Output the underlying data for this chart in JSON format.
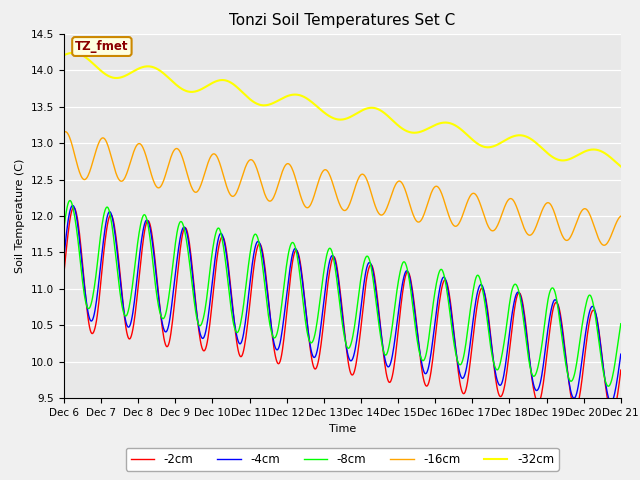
{
  "title": "Tonzi Soil Temperatures Set C",
  "xlabel": "Time",
  "ylabel": "Soil Temperature (C)",
  "ylim": [
    9.5,
    14.5
  ],
  "annotation": "TZ_fmet",
  "bg_color": "#e8e8e8",
  "fig_bg_color": "#f0f0f0",
  "legend_labels": [
    "-2cm",
    "-4cm",
    "-8cm",
    "-16cm",
    "-32cm"
  ],
  "xtick_labels": [
    "Dec 6",
    "Dec 7",
    "Dec 8",
    "Dec 9",
    "Dec 10",
    "Dec 11",
    "Dec 12",
    "Dec 13",
    "Dec 14",
    "Dec 15",
    "Dec 16",
    "Dec 17",
    "Dec 18",
    "Dec 19",
    "Dec 20",
    "Dec 21"
  ],
  "n_points": 720
}
